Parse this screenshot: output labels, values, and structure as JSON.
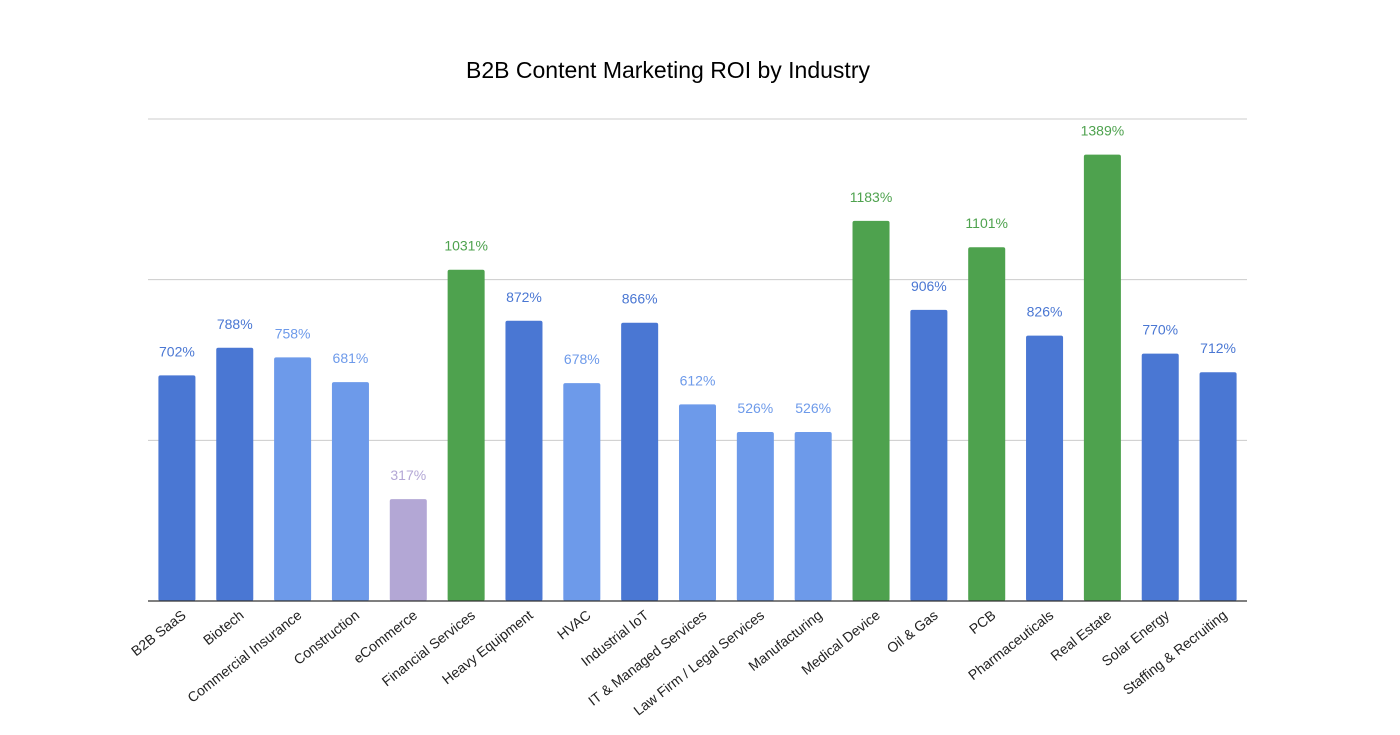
{
  "chart_data": {
    "type": "bar",
    "title": "B2B Content Marketing ROI by Industry",
    "categories": [
      "B2B SaaS",
      "Biotech",
      "Commercial Insurance",
      "Construction",
      "eCommerce",
      "Financial Services",
      "Heavy Equipment",
      "HVAC",
      "Industrial IoT",
      "IT & Managed Services",
      "Law Firm / Legal Services",
      "Manufacturing",
      "Medical Device",
      "Oil & Gas",
      "PCB",
      "Pharmaceuticals",
      "Real Estate",
      "Solar Energy",
      "Staffing & Recruiting"
    ],
    "values": [
      702,
      788,
      758,
      681,
      317,
      1031,
      872,
      678,
      866,
      612,
      526,
      526,
      1183,
      906,
      1101,
      826,
      1389,
      770,
      712
    ],
    "value_labels": [
      "702%",
      "788%",
      "758%",
      "681%",
      "317%",
      "1031%",
      "872%",
      "678%",
      "866%",
      "612%",
      "526%",
      "526%",
      "1183%",
      "906%",
      "1101%",
      "826%",
      "1389%",
      "770%",
      "712%"
    ],
    "colors": [
      "#4a77d3",
      "#4a77d3",
      "#6d9aea",
      "#6d9aea",
      "#b3a7d5",
      "#4ea24e",
      "#4a77d3",
      "#6d9aea",
      "#4a77d3",
      "#6d9aea",
      "#6d9aea",
      "#6d9aea",
      "#4ea24e",
      "#4a77d3",
      "#4ea24e",
      "#4a77d3",
      "#4ea24e",
      "#4a77d3",
      "#4a77d3"
    ],
    "ylim": [
      0,
      1500
    ],
    "yticks": [
      500,
      1000,
      1500
    ],
    "grid": true
  }
}
